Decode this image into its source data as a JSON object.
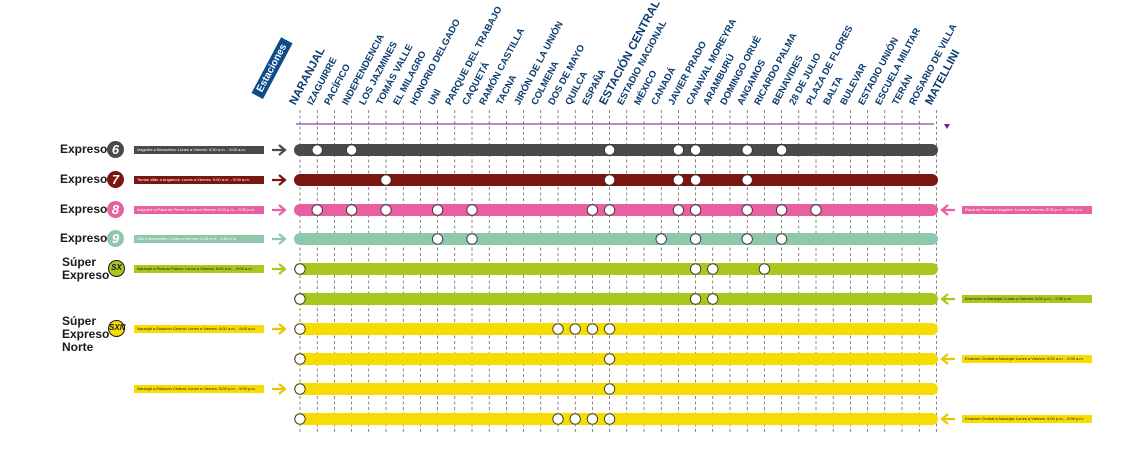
{
  "header_tab": "Estaciones",
  "stations": [
    "NARANJAL",
    "IZAGUIRRE",
    "PACÍFICO",
    "INDEPENDENCIA",
    "LOS JAZMINES",
    "TOMÁS VALLE",
    "EL MILAGRO",
    "HONORIO DELGADO",
    "UNI",
    "PARQUE DEL TRABAJO",
    "CAQUETÁ",
    "RAMÓN CASTILLA",
    "TACNA",
    "JIRÓN DE LA UNIÓN",
    "COLMENA",
    "DOS DE MAYO",
    "QUILCA",
    "ESPAÑA",
    "ESTACIÓN CENTRAL",
    "ESTADIO NACIONAL",
    "MÉXICO",
    "CANADÁ",
    "JAVIER PRADO",
    "CANAVAL MOREYRA",
    "ARAMBURÚ",
    "DOMINGO ORUÉ",
    "ANGAMOS",
    "RICARDO PALMA",
    "BENAVIDES",
    "28 DE JULIO",
    "PLAZA DE FLORES",
    "BALTA",
    "BULEVAR",
    "ESTADIO UNIÓN",
    "ESCUELA MILITAR",
    "TERÁN",
    "ROSARIO DE VILLA",
    "MATELLINI"
  ],
  "services": [
    {
      "name": "Expreso",
      "badge": "6",
      "color": "#4a4a4a"
    },
    {
      "name": "Expreso",
      "badge": "7",
      "color": "#7b1510"
    },
    {
      "name": "Expreso",
      "badge": "8",
      "color": "#e8609f"
    },
    {
      "name": "Expreso",
      "badge": "9",
      "color": "#8ec7a9"
    },
    {
      "name": "Súper Expreso",
      "badge": "SX",
      "color": "#a8c81e"
    },
    {
      "name": "Súper Expreso Norte",
      "badge": "SXN",
      "color": "#f6dc00"
    }
  ],
  "rows": [
    {
      "color": "#4a4a4a",
      "direction": "right",
      "left_info": "Izaguirre a Benavides: Lunes a Viernes: 5:30 a.m. - 9:00 a.m.",
      "right_info": "",
      "stops": [
        1,
        3,
        18,
        22,
        23,
        26,
        28
      ]
    },
    {
      "color": "#7b1510",
      "direction": "right",
      "left_info": "Tomás Valle a Angamos: Lunes a Viernes: 5:00 a.m. - 9:00 a.m.",
      "right_info": "",
      "stops": [
        5,
        18,
        22,
        23,
        26
      ]
    },
    {
      "color": "#e8609f",
      "direction": "both",
      "left_info": "Izaguirre a Plaza de Flores: Lunes a Viernes: 5:00 p.m. - 9:00 p.m.",
      "right_info": "Plaza de Flores a Izaguirre: Lunes a Viernes: 5:00 p.m. - 9:00 p.m.",
      "stops": [
        1,
        3,
        5,
        8,
        10,
        17,
        18,
        22,
        23,
        26,
        28,
        30
      ]
    },
    {
      "color": "#8ec7a9",
      "direction": "right",
      "left_info": "UNI a Benavides: Lunes a Viernes: 5:45 a.m. - 9:00 a.m.",
      "right_info": "",
      "stops": [
        8,
        10,
        21,
        23,
        26,
        28
      ]
    },
    {
      "color": "#a8c81e",
      "direction": "right",
      "left_info": "Naranjal a Ricardo Palma: Lunes a Viernes: 6:00 a.m. - 9:00 a.m.",
      "right_info": "",
      "stops": [
        0,
        23,
        24,
        27
      ]
    },
    {
      "color": "#a8c81e",
      "direction": "left",
      "left_info": "",
      "right_info": "Aramburú a Naranjal: Lunes a Viernes: 5:00 p.m. - 9:00 p.m.",
      "stops": [
        0,
        23,
        24
      ]
    },
    {
      "color": "#f6dc00",
      "direction": "right",
      "left_info": "Naranjal a Estación Central: Lunes a Viernes: 5:00 a.m. - 9:00 a.m.",
      "right_info": "",
      "stops": [
        0,
        15,
        16,
        17,
        18
      ]
    },
    {
      "color": "#f6dc00",
      "direction": "left",
      "left_info": "",
      "right_info": "Estación Central a Naranjal: Lunes a Viernes: 5:00 a.m. - 9:00 a.m.",
      "stops": [
        0,
        18
      ]
    },
    {
      "color": "#f6dc00",
      "direction": "right",
      "left_info": "Naranjal a Estación Central: Lunes a Viernes: 5:00 p.m. - 9:00 p.m.",
      "right_info": "",
      "stops": [
        0,
        18
      ]
    },
    {
      "color": "#f6dc00",
      "direction": "left",
      "left_info": "",
      "right_info": "Estación Central a Naranjal: Lunes a Viernes: 5:00 p.m. - 9:00 p.m.",
      "stops": [
        0,
        15,
        16,
        17,
        18
      ]
    }
  ]
}
